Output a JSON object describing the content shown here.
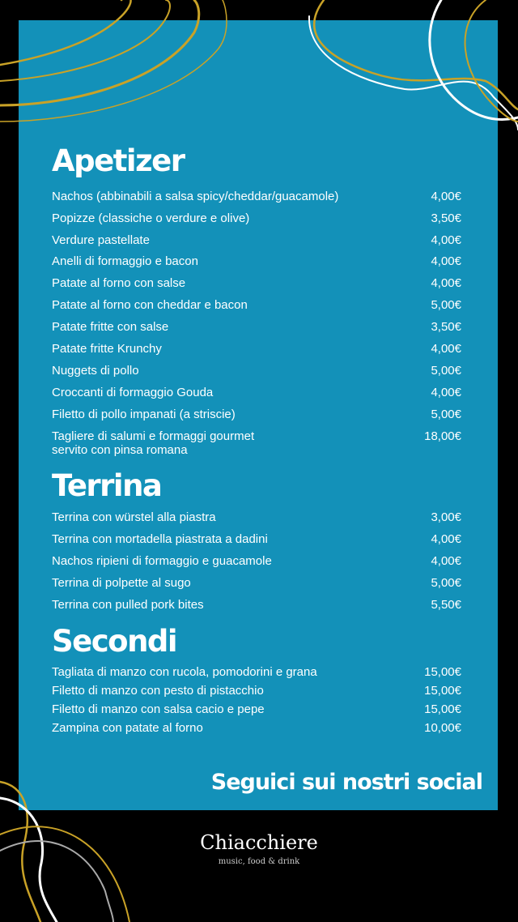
{
  "colors": {
    "panel": "#1391b9",
    "background": "#000000",
    "accent_lines": "#c9a227"
  },
  "sections": [
    {
      "title": "Apetizer",
      "items": [
        {
          "name": "Nachos (abbinabili a salsa spicy/cheddar/guacamole)",
          "price": "4,00€"
        },
        {
          "name": "Popizze (classiche o verdure e olive)",
          "price": "3,50€"
        },
        {
          "name": "Verdure pastellate",
          "price": "4,00€"
        },
        {
          "name": "Anelli di formaggio e bacon",
          "price": "4,00€"
        },
        {
          "name": "Patate al forno con salse",
          "price": "4,00€"
        },
        {
          "name": "Patate al forno con cheddar e bacon",
          "price": "5,00€"
        },
        {
          "name": "Patate fritte con salse",
          "price": "3,50€"
        },
        {
          "name": "Patate fritte Krunchy",
          "price": "4,00€"
        },
        {
          "name": "Nuggets di pollo",
          "price": "5,00€"
        },
        {
          "name": "Croccanti di formaggio Gouda",
          "price": "4,00€"
        },
        {
          "name": "Filetto di pollo impanati (a striscie)",
          "price": "5,00€"
        },
        {
          "name": "Tagliere di salumi e formaggi gourmet",
          "name2": "servito con pinsa romana",
          "price": "18,00€"
        }
      ]
    },
    {
      "title": "Terrina",
      "items": [
        {
          "name": "Terrina con würstel alla piastra",
          "price": "3,00€"
        },
        {
          "name": "Terrina con mortadella piastrata a dadini",
          "price": "4,00€"
        },
        {
          "name": "Nachos ripieni di formaggio e guacamole",
          "price": "4,00€"
        },
        {
          "name": "Terrina di polpette al sugo",
          "price": "5,00€"
        },
        {
          "name": "Terrina con pulled pork  bites",
          "price": "5,50€"
        }
      ]
    },
    {
      "title": "Secondi",
      "items": [
        {
          "name": "Tagliata di manzo con rucola, pomodorini e grana",
          "price": "15,00€"
        },
        {
          "name": "Filetto di manzo con pesto di pistacchio",
          "price": "15,00€"
        },
        {
          "name": "Filetto di manzo con salsa cacio e pepe",
          "price": "15,00€"
        },
        {
          "name": "Zampina con patate al forno",
          "price": "10,00€"
        }
      ]
    }
  ],
  "social": "Seguici sui nostri social",
  "logo": {
    "brand": "Chiacchiere",
    "tagline": "music, food & drink"
  }
}
